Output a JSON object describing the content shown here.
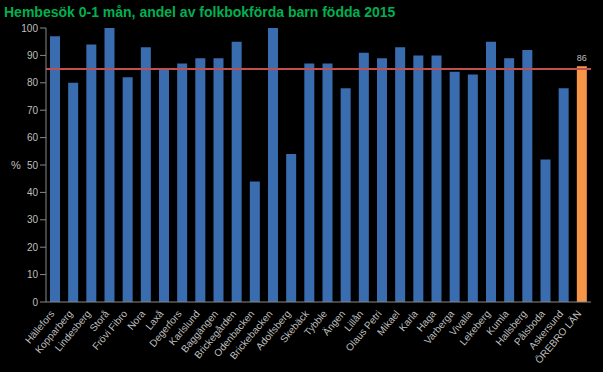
{
  "chart_data": {
    "type": "bar",
    "title": "Hembesök 0-1 mån, andel av folkbokförda barn födda 2015",
    "y_label": "%",
    "categories": [
      "Hällefors",
      "Kopparberg",
      "Lindesberg",
      "Storå",
      "Frövi Fibro",
      "Nora",
      "Laxå",
      "Degerfors",
      "Karlslund",
      "Baggängen",
      "Brickegården",
      "Odenbacken",
      "Brickebacken",
      "Adolfsberg",
      "Skebäck",
      "Tybble",
      "Ängen",
      "Lillån",
      "Olaus Petri",
      "Mikael",
      "Karla",
      "Haga",
      "Varberga",
      "Vivalla",
      "Lekeberg",
      "Kumla",
      "Hallsberg",
      "Pålsboda",
      "Askersund",
      "ÖREBRO LÄN"
    ],
    "values": [
      97,
      80,
      94,
      100,
      82,
      93,
      85,
      87,
      89,
      89,
      95,
      44,
      100,
      54,
      87,
      87,
      78,
      91,
      89,
      93,
      90,
      90,
      84,
      83,
      95,
      89,
      92,
      52,
      78,
      86
    ],
    "value_labels": [
      null,
      null,
      null,
      null,
      null,
      null,
      null,
      null,
      null,
      null,
      null,
      null,
      null,
      null,
      null,
      null,
      null,
      null,
      null,
      null,
      null,
      null,
      null,
      null,
      null,
      null,
      null,
      null,
      null,
      "86"
    ],
    "colors": [
      "#3a6db0",
      "#3a6db0",
      "#3a6db0",
      "#3a6db0",
      "#3a6db0",
      "#3a6db0",
      "#3a6db0",
      "#3a6db0",
      "#3a6db0",
      "#3a6db0",
      "#3a6db0",
      "#3a6db0",
      "#3a6db0",
      "#3a6db0",
      "#3a6db0",
      "#3a6db0",
      "#3a6db0",
      "#3a6db0",
      "#3a6db0",
      "#3a6db0",
      "#3a6db0",
      "#3a6db0",
      "#3a6db0",
      "#3a6db0",
      "#3a6db0",
      "#3a6db0",
      "#3a6db0",
      "#3a6db0",
      "#3a6db0",
      "#f79646"
    ],
    "reference_line": 85,
    "ylim": [
      0,
      100
    ],
    "yticks": [
      0,
      10,
      20,
      30,
      40,
      50,
      60,
      70,
      80,
      90,
      100
    ]
  }
}
